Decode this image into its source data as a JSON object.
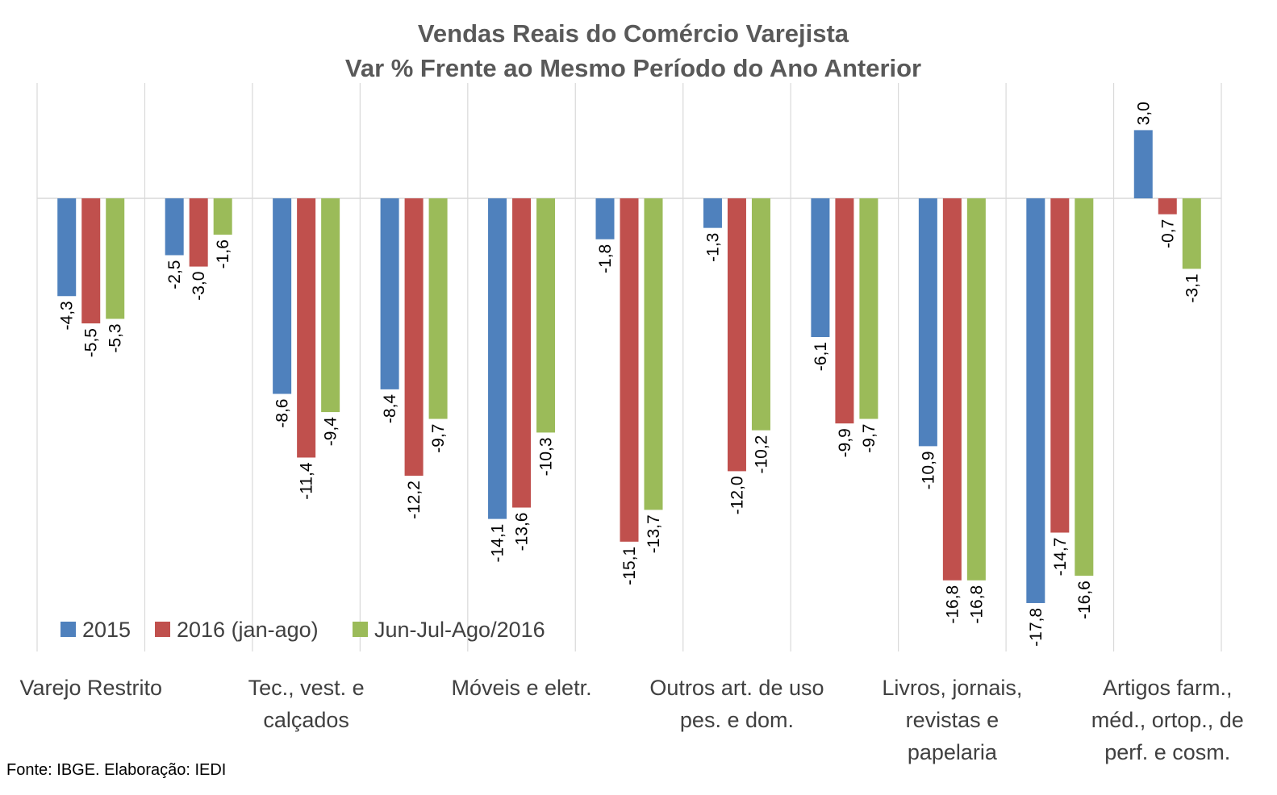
{
  "chart_data": {
    "type": "bar",
    "title": "Vendas Reais do Comércio Varejista",
    "subtitle": "Var % Frente ao Mesmo Período do Ano Anterior",
    "categories": [
      "Varejo Restrito",
      "",
      "Tec., vest. e calçados",
      "",
      "Móveis e eletr.",
      "",
      "Outros art. de uso pes. e dom.",
      "",
      "Livros, jornais, revistas e papelaria",
      "",
      "Artigos farm., méd., ortop., de perf. e cosm."
    ],
    "series": [
      {
        "name": "2015",
        "color": "#4F81BD",
        "values": [
          -4.3,
          -2.5,
          -8.6,
          -8.4,
          -14.1,
          -1.8,
          -1.3,
          -6.1,
          -10.9,
          -17.8,
          3.0
        ],
        "labels": [
          "-4,3",
          "-2,5",
          "-8,6",
          "-8,4",
          "-14,1",
          "-1,8",
          "-1,3",
          "-6,1",
          "-10,9",
          "-17,8",
          "3,0"
        ]
      },
      {
        "name": "2016 (jan-ago)",
        "color": "#C0504D",
        "values": [
          -5.5,
          -3.0,
          -11.4,
          -12.2,
          -13.6,
          -15.1,
          -12.0,
          -9.9,
          -16.8,
          -14.7,
          -0.7
        ],
        "labels": [
          "-5,5",
          "-3,0",
          "-11,4",
          "-12,2",
          "-13,6",
          "-15,1",
          "-12,0",
          "-9,9",
          "-16,8",
          "-14,7",
          "-0,7"
        ]
      },
      {
        "name": "Jun-Jul-Ago/2016",
        "color": "#9BBB59",
        "values": [
          -5.3,
          -1.6,
          -9.4,
          -9.7,
          -10.3,
          -13.7,
          -10.2,
          -9.7,
          -16.8,
          -16.6,
          -3.1
        ],
        "labels": [
          "-5,3",
          "-1,6",
          "-9,4",
          "-9,7",
          "-10,3",
          "-13,7",
          "-10,2",
          "-9,7",
          "-16,8",
          "-16,6",
          "-3,1"
        ]
      }
    ],
    "ylim": [
      -20,
      5
    ],
    "grid": "vertical",
    "legend_position": "bottom-left",
    "category_labels_shown": [
      {
        "index": 0,
        "lines": [
          "Varejo Restrito"
        ]
      },
      {
        "index": 2,
        "lines": [
          "Tec., vest. e",
          "calçados"
        ]
      },
      {
        "index": 4,
        "lines": [
          "Móveis e eletr."
        ]
      },
      {
        "index": 6,
        "lines": [
          "Outros art. de uso",
          "pes. e dom."
        ]
      },
      {
        "index": 8,
        "lines": [
          "Livros, jornais,",
          "revistas e",
          "papelaria"
        ]
      },
      {
        "index": 10,
        "lines": [
          "Artigos farm.,",
          "méd., ortop., de",
          "perf. e cosm."
        ]
      }
    ]
  },
  "footer": {
    "source": "Fonte: IBGE. Elaboração: IEDI"
  }
}
